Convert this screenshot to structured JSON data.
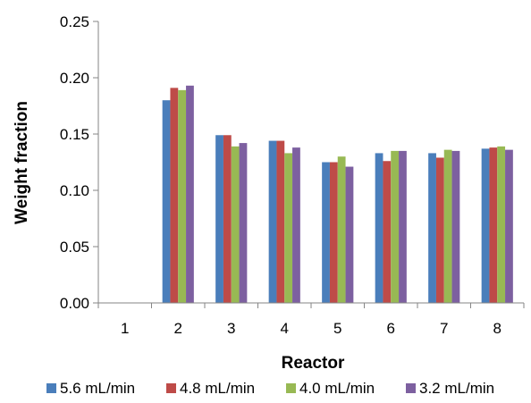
{
  "chart_data": {
    "type": "bar",
    "xlabel": "Reactor",
    "ylabel": "Weight fraction",
    "ylim": [
      0,
      0.25
    ],
    "ytick_labels": [
      "0.00",
      "0.05",
      "0.10",
      "0.15",
      "0.20",
      "0.25"
    ],
    "categories": [
      "1",
      "2",
      "3",
      "4",
      "5",
      "6",
      "7",
      "8"
    ],
    "grid": false,
    "legend_position": "bottom",
    "series": [
      {
        "name": "5.6 mL/min",
        "color": "#4a7ebb",
        "values": [
          0,
          0.18,
          0.149,
          0.144,
          0.125,
          0.133,
          0.133,
          0.137
        ]
      },
      {
        "name": "4.8 mL/min",
        "color": "#be4b48",
        "values": [
          0,
          0.191,
          0.149,
          0.144,
          0.125,
          0.126,
          0.129,
          0.138
        ]
      },
      {
        "name": "4.0 mL/min",
        "color": "#98b954",
        "values": [
          0,
          0.189,
          0.139,
          0.133,
          0.13,
          0.135,
          0.136,
          0.139
        ]
      },
      {
        "name": "3.2 mL/min",
        "color": "#7d60a0",
        "values": [
          0,
          0.193,
          0.142,
          0.138,
          0.121,
          0.135,
          0.135,
          0.136
        ]
      }
    ]
  }
}
